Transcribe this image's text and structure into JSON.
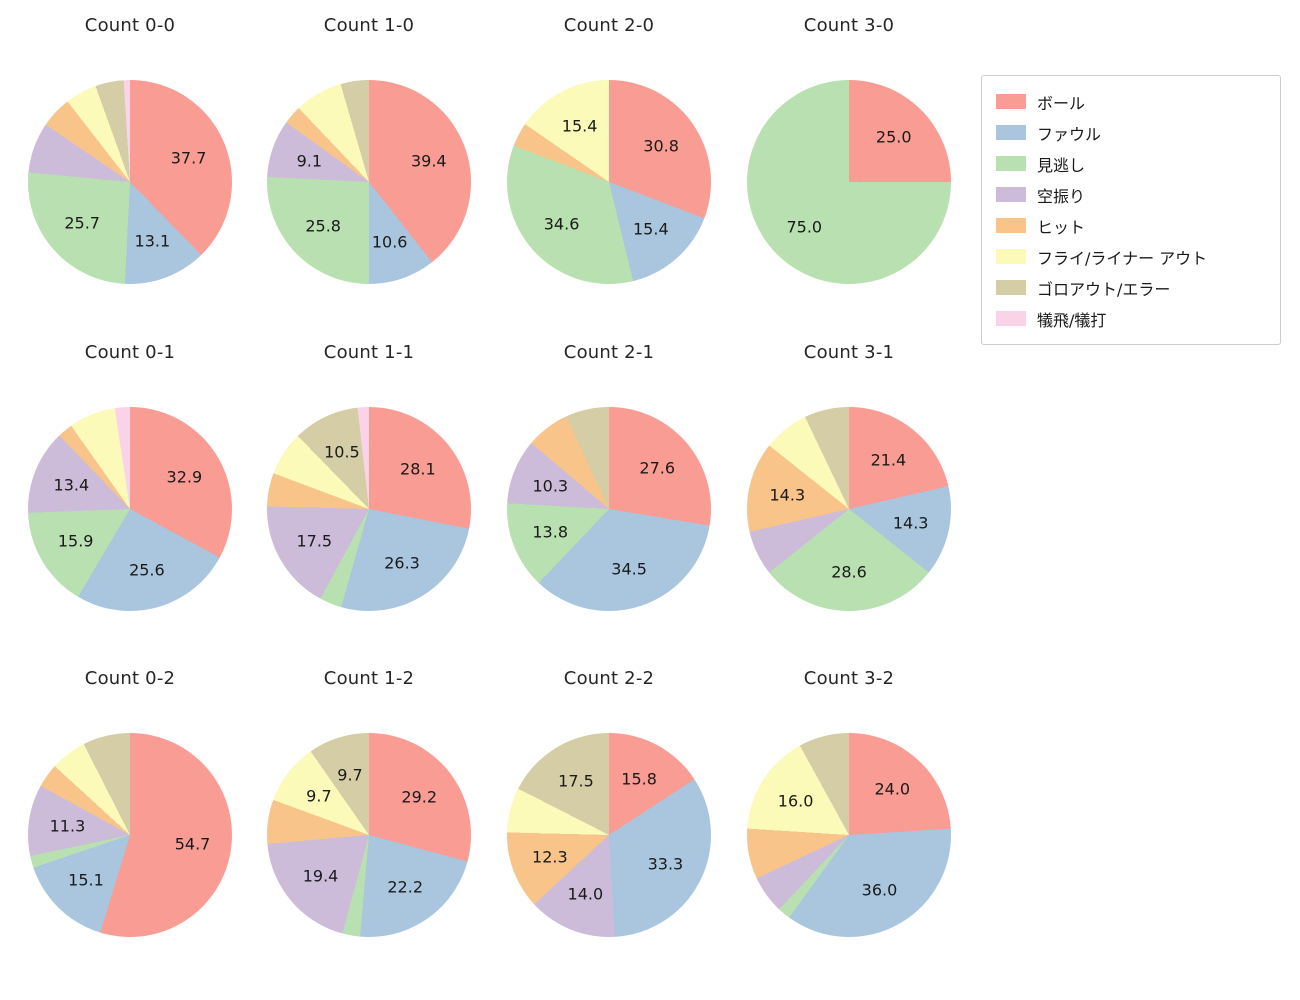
{
  "legend": {
    "items": [
      {
        "label": "ボール",
        "color": "#f99c93"
      },
      {
        "label": "ファウル",
        "color": "#a9c6de"
      },
      {
        "label": "見逃し",
        "color": "#b8e0b0"
      },
      {
        "label": "空振り",
        "color": "#ccbbd9"
      },
      {
        "label": "ヒット",
        "color": "#f8c489"
      },
      {
        "label": "フライ/ライナー アウト",
        "color": "#fbfab8"
      },
      {
        "label": "ゴロアウト/エラー",
        "color": "#d5cda6"
      },
      {
        "label": "犠飛/犠打",
        "color": "#fad3e9"
      }
    ]
  },
  "chart_data": [
    {
      "type": "pie",
      "title": "Count 0-0",
      "slices": [
        {
          "cat": 0,
          "value": 37.7,
          "text": "37.7"
        },
        {
          "cat": 1,
          "value": 13.1,
          "text": "13.1"
        },
        {
          "cat": 2,
          "value": 25.7,
          "text": "25.7"
        },
        {
          "cat": 3,
          "value": 8.0
        },
        {
          "cat": 4,
          "value": 5.0
        },
        {
          "cat": 5,
          "value": 5.0
        },
        {
          "cat": 6,
          "value": 4.5
        },
        {
          "cat": 7,
          "value": 1.0
        }
      ]
    },
    {
      "type": "pie",
      "title": "Count 1-0",
      "slices": [
        {
          "cat": 0,
          "value": 39.4,
          "text": "39.4"
        },
        {
          "cat": 1,
          "value": 10.6,
          "text": "10.6"
        },
        {
          "cat": 2,
          "value": 25.8,
          "text": "25.8"
        },
        {
          "cat": 3,
          "value": 9.1,
          "text": "9.1"
        },
        {
          "cat": 4,
          "value": 3.0
        },
        {
          "cat": 5,
          "value": 7.6
        },
        {
          "cat": 6,
          "value": 4.5
        }
      ]
    },
    {
      "type": "pie",
      "title": "Count 2-0",
      "slices": [
        {
          "cat": 0,
          "value": 30.8,
          "text": "30.8"
        },
        {
          "cat": 1,
          "value": 15.4,
          "text": "15.4"
        },
        {
          "cat": 2,
          "value": 34.6,
          "text": "34.6"
        },
        {
          "cat": 4,
          "value": 3.8
        },
        {
          "cat": 5,
          "value": 15.4,
          "text": "15.4"
        }
      ]
    },
    {
      "type": "pie",
      "title": "Count 3-0",
      "slices": [
        {
          "cat": 0,
          "value": 25.0,
          "text": "25.0"
        },
        {
          "cat": 2,
          "value": 75.0,
          "text": "75.0"
        }
      ]
    },
    {
      "type": "pie",
      "title": "Count 0-1",
      "slices": [
        {
          "cat": 0,
          "value": 32.9,
          "text": "32.9"
        },
        {
          "cat": 1,
          "value": 25.6,
          "text": "25.6"
        },
        {
          "cat": 2,
          "value": 15.9,
          "text": "15.9"
        },
        {
          "cat": 3,
          "value": 13.4,
          "text": "13.4"
        },
        {
          "cat": 4,
          "value": 2.4
        },
        {
          "cat": 5,
          "value": 7.4
        },
        {
          "cat": 7,
          "value": 2.4
        }
      ]
    },
    {
      "type": "pie",
      "title": "Count 1-1",
      "slices": [
        {
          "cat": 0,
          "value": 28.1,
          "text": "28.1"
        },
        {
          "cat": 1,
          "value": 26.3,
          "text": "26.3"
        },
        {
          "cat": 2,
          "value": 3.5
        },
        {
          "cat": 3,
          "value": 17.5,
          "text": "17.5"
        },
        {
          "cat": 4,
          "value": 5.3
        },
        {
          "cat": 5,
          "value": 7.0
        },
        {
          "cat": 6,
          "value": 10.5,
          "text": "10.5"
        },
        {
          "cat": 7,
          "value": 1.8
        }
      ]
    },
    {
      "type": "pie",
      "title": "Count 2-1",
      "slices": [
        {
          "cat": 0,
          "value": 27.6,
          "text": "27.6"
        },
        {
          "cat": 1,
          "value": 34.5,
          "text": "34.5"
        },
        {
          "cat": 2,
          "value": 13.8,
          "text": "13.8"
        },
        {
          "cat": 3,
          "value": 10.3,
          "text": "10.3"
        },
        {
          "cat": 4,
          "value": 6.9
        },
        {
          "cat": 6,
          "value": 6.9
        }
      ]
    },
    {
      "type": "pie",
      "title": "Count 3-1",
      "slices": [
        {
          "cat": 0,
          "value": 21.4,
          "text": "21.4"
        },
        {
          "cat": 1,
          "value": 14.3,
          "text": "14.3"
        },
        {
          "cat": 2,
          "value": 28.6,
          "text": "28.6"
        },
        {
          "cat": 3,
          "value": 7.1
        },
        {
          "cat": 4,
          "value": 14.3,
          "text": "14.3"
        },
        {
          "cat": 5,
          "value": 7.2
        },
        {
          "cat": 6,
          "value": 7.1
        }
      ]
    },
    {
      "type": "pie",
      "title": "Count 0-2",
      "slices": [
        {
          "cat": 0,
          "value": 54.7,
          "text": "54.7"
        },
        {
          "cat": 1,
          "value": 15.1,
          "text": "15.1"
        },
        {
          "cat": 2,
          "value": 1.9
        },
        {
          "cat": 3,
          "value": 11.3,
          "text": "11.3"
        },
        {
          "cat": 4,
          "value": 3.8
        },
        {
          "cat": 5,
          "value": 5.7
        },
        {
          "cat": 6,
          "value": 7.5
        }
      ]
    },
    {
      "type": "pie",
      "title": "Count 1-2",
      "slices": [
        {
          "cat": 0,
          "value": 29.2,
          "text": "29.2"
        },
        {
          "cat": 1,
          "value": 22.2,
          "text": "22.2"
        },
        {
          "cat": 2,
          "value": 2.8
        },
        {
          "cat": 3,
          "value": 19.4,
          "text": "19.4"
        },
        {
          "cat": 4,
          "value": 7.0
        },
        {
          "cat": 5,
          "value": 9.7,
          "text": "9.7"
        },
        {
          "cat": 6,
          "value": 9.7,
          "text": "9.7"
        }
      ]
    },
    {
      "type": "pie",
      "title": "Count 2-2",
      "slices": [
        {
          "cat": 0,
          "value": 15.8,
          "text": "15.8"
        },
        {
          "cat": 1,
          "value": 33.3,
          "text": "33.3"
        },
        {
          "cat": 3,
          "value": 14.0,
          "text": "14.0"
        },
        {
          "cat": 4,
          "value": 12.3,
          "text": "12.3"
        },
        {
          "cat": 5,
          "value": 7.1
        },
        {
          "cat": 6,
          "value": 17.5,
          "text": "17.5"
        }
      ]
    },
    {
      "type": "pie",
      "title": "Count 3-2",
      "slices": [
        {
          "cat": 0,
          "value": 24.0,
          "text": "24.0"
        },
        {
          "cat": 1,
          "value": 36.0,
          "text": "36.0"
        },
        {
          "cat": 2,
          "value": 2.0
        },
        {
          "cat": 3,
          "value": 6.0
        },
        {
          "cat": 4,
          "value": 8.0
        },
        {
          "cat": 5,
          "value": 16.0,
          "text": "16.0"
        },
        {
          "cat": 6,
          "value": 8.0
        }
      ]
    }
  ]
}
